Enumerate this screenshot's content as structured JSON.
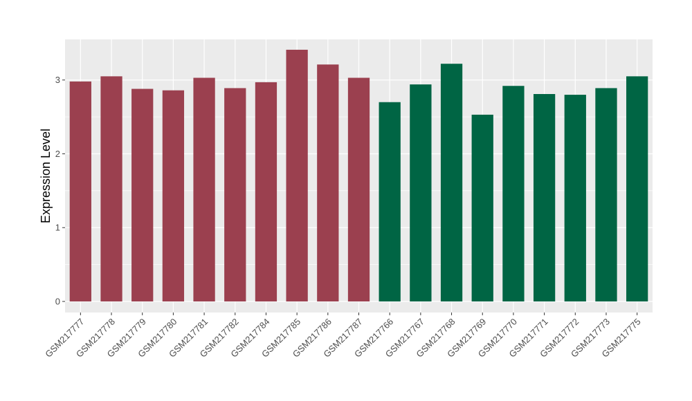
{
  "chart_data": {
    "type": "bar",
    "title": "",
    "xlabel": "",
    "ylabel": "Expression Level",
    "ylim": [
      -0.15,
      3.55
    ],
    "y_ticks": [
      0,
      1,
      2,
      3
    ],
    "grid": true,
    "colors": {
      "group_a": "#9b404f",
      "group_b": "#006544",
      "panel_bg": "#ebebeb",
      "grid": "#ffffff"
    },
    "categories": [
      "GSM217777",
      "GSM217778",
      "GSM217779",
      "GSM217780",
      "GSM217781",
      "GSM217782",
      "GSM217784",
      "GSM217785",
      "GSM217786",
      "GSM217787",
      "GSM217766",
      "GSM217767",
      "GSM217768",
      "GSM217769",
      "GSM217770",
      "GSM217771",
      "GSM217772",
      "GSM217773",
      "GSM217775"
    ],
    "values": [
      2.98,
      3.05,
      2.88,
      2.86,
      3.03,
      2.89,
      2.97,
      3.41,
      3.21,
      3.03,
      2.7,
      2.94,
      3.22,
      2.53,
      2.92,
      2.81,
      2.8,
      2.89,
      3.05
    ],
    "groups": [
      "a",
      "a",
      "a",
      "a",
      "a",
      "a",
      "a",
      "a",
      "a",
      "a",
      "b",
      "b",
      "b",
      "b",
      "b",
      "b",
      "b",
      "b",
      "b"
    ]
  }
}
